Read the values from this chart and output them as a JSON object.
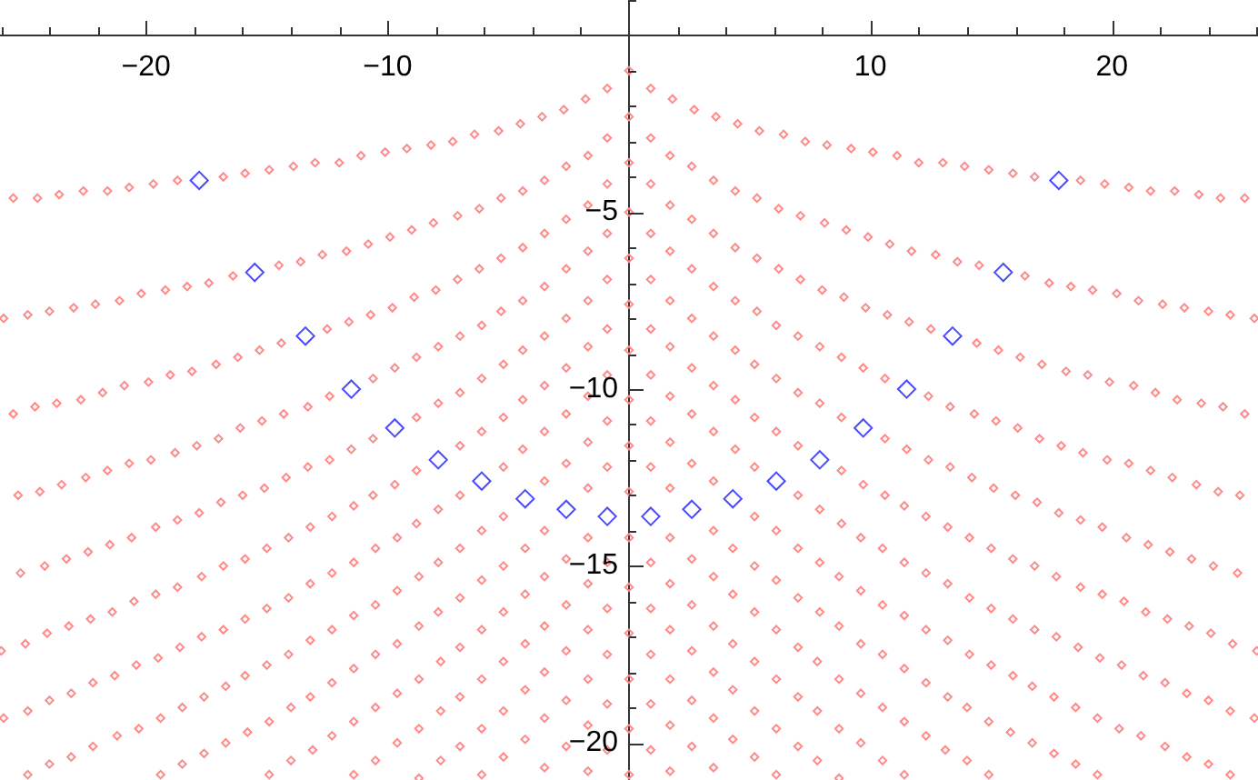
{
  "chart_data": {
    "type": "scatter",
    "xlim": [
      -26.05,
      26.05
    ],
    "ylim": [
      -21.05,
      1
    ],
    "marker": "diamond",
    "xticks": [
      {
        "value": -26,
        "label": null
      },
      {
        "value": -24,
        "label": null
      },
      {
        "value": -22,
        "label": null
      },
      {
        "value": -20,
        "label": "−20"
      },
      {
        "value": -18,
        "label": null
      },
      {
        "value": -16,
        "label": null
      },
      {
        "value": -14,
        "label": null
      },
      {
        "value": -12,
        "label": null
      },
      {
        "value": -10,
        "label": "−10"
      },
      {
        "value": -8,
        "label": null
      },
      {
        "value": -6,
        "label": null
      },
      {
        "value": -4,
        "label": null
      },
      {
        "value": -2,
        "label": null
      },
      {
        "value": 2,
        "label": null
      },
      {
        "value": 4,
        "label": null
      },
      {
        "value": 6,
        "label": null
      },
      {
        "value": 8,
        "label": null
      },
      {
        "value": 10,
        "label": "10"
      },
      {
        "value": 12,
        "label": null
      },
      {
        "value": 14,
        "label": null
      },
      {
        "value": 16,
        "label": null
      },
      {
        "value": 18,
        "label": null
      },
      {
        "value": 20,
        "label": "20"
      },
      {
        "value": 22,
        "label": null
      },
      {
        "value": 24,
        "label": null
      },
      {
        "value": 26,
        "label": null
      }
    ],
    "yticks": [
      {
        "value": 1,
        "label": null
      },
      {
        "value": -1,
        "label": null
      },
      {
        "value": -2,
        "label": null
      },
      {
        "value": -3,
        "label": null
      },
      {
        "value": -4,
        "label": null
      },
      {
        "value": -5,
        "label": "−5"
      },
      {
        "value": -6,
        "label": null
      },
      {
        "value": -7,
        "label": null
      },
      {
        "value": -8,
        "label": null
      },
      {
        "value": -9,
        "label": null
      },
      {
        "value": -10,
        "label": "−10"
      },
      {
        "value": -11,
        "label": null
      },
      {
        "value": -12,
        "label": null
      },
      {
        "value": -13,
        "label": null
      },
      {
        "value": -14,
        "label": null
      },
      {
        "value": -15,
        "label": "−15"
      },
      {
        "value": -16,
        "label": null
      },
      {
        "value": -17,
        "label": null
      },
      {
        "value": -18,
        "label": null
      },
      {
        "value": -19,
        "label": null
      },
      {
        "value": -20,
        "label": "−20"
      }
    ],
    "series": [
      {
        "color": "#ff8a8a",
        "x": [
          0,
          0.9,
          -0.9,
          1.8,
          0,
          -1.8,
          2.7,
          0.9,
          -2.7,
          -0.9,
          3.6,
          1.7,
          0,
          -3.6,
          -1.7,
          4.5,
          2.6,
          0.9,
          -4.5,
          -2.6,
          -0.9,
          5.4,
          3.5,
          1.7,
          0,
          -5.4,
          -3.5,
          -1.7,
          6.4,
          4.4,
          2.6,
          0.9,
          -6.4,
          -4.4,
          -2.6,
          -0.9,
          7.3,
          5.3,
          3.5,
          1.7,
          0,
          -7.3,
          -5.3,
          -3.5,
          -1.7,
          8.2,
          6.2,
          4.4,
          2.6,
          0.9,
          -8.2,
          -6.2,
          -4.4,
          -2.6,
          -0.9,
          9.2,
          7.1,
          5.3,
          3.5,
          1.7,
          0,
          -9.2,
          -7.1,
          -5.3,
          -3.5,
          -1.7,
          10.1,
          8.1,
          6.2,
          4.4,
          2.6,
          0.9,
          -10.1,
          -8.1,
          -6.2,
          -4.4,
          -2.6,
          -0.9,
          11.1,
          9.0,
          7.1,
          5.3,
          3.5,
          1.7,
          0,
          -11.1,
          -9.0,
          -7.1,
          -5.3,
          -3.5,
          -1.7,
          12.0,
          9.9,
          8.0,
          6.1,
          4.4,
          2.6,
          0.9,
          -12.0,
          -9.9,
          -8.0,
          -6.1,
          -4.4,
          -2.6,
          -0.9,
          13.0,
          10.8,
          8.9,
          7.0,
          5.2,
          3.5,
          1.7,
          0,
          -13.0,
          -10.8,
          -8.9,
          -7.0,
          -5.2,
          -3.5,
          -1.7,
          13.9,
          11.7,
          9.8,
          7.9,
          6.1,
          4.4,
          2.6,
          0.9,
          -13.9,
          -11.7,
          -9.8,
          -7.9,
          -6.1,
          -4.4,
          -2.6,
          -0.9,
          14.9,
          12.7,
          10.7,
          8.8,
          7.0,
          5.2,
          3.5,
          1.7,
          0,
          -14.9,
          -12.7,
          -10.7,
          -8.8,
          -7.0,
          -5.2,
          -3.5,
          -1.7,
          15.9,
          13.6,
          11.6,
          9.7,
          7.9,
          6.1,
          4.4,
          2.6,
          0.9,
          -15.9,
          -13.6,
          -11.6,
          -9.7,
          -7.9,
          -6.1,
          -4.4,
          -2.6,
          -0.9,
          16.8,
          14.5,
          12.5,
          10.6,
          8.8,
          7.0,
          5.2,
          3.5,
          1.7,
          0,
          -16.8,
          -14.5,
          -12.5,
          -10.6,
          -8.8,
          -7.0,
          -5.2,
          -3.5,
          -1.7,
          18.7,
          16.4,
          14.4,
          12.4,
          10.6,
          8.8,
          7.0,
          5.2,
          3.5,
          1.7,
          0,
          -18.7,
          -16.4,
          -14.4,
          -12.4,
          -10.6,
          -8.8,
          -7.0,
          -5.2,
          -3.5,
          -1.7,
          19.7,
          17.4,
          15.3,
          13.3,
          11.5,
          9.7,
          7.9,
          6.1,
          4.3,
          2.6,
          0.9,
          -19.7,
          -17.4,
          -15.3,
          -13.3,
          -11.5,
          -9.7,
          -7.9,
          -6.1,
          -4.3,
          -2.6,
          -0.9,
          20.7,
          18.3,
          16.2,
          14.3,
          12.4,
          10.6,
          8.8,
          7.0,
          5.2,
          3.5,
          1.7,
          0,
          -20.7,
          -18.3,
          -16.2,
          -14.3,
          -12.4,
          -10.6,
          -8.8,
          -7.0,
          -5.2,
          -3.5,
          -1.7,
          21.6,
          19.2,
          17.1,
          15.2,
          13.3,
          11.4,
          9.6,
          7.9,
          6.1,
          4.3,
          2.6,
          0.9,
          -21.6,
          -19.2,
          -17.1,
          -15.2,
          -13.3,
          -11.4,
          -9.6,
          -7.9,
          -6.1,
          -4.3,
          -2.6,
          -0.9,
          22.6,
          20.2,
          18.1,
          16.1,
          14.2,
          12.3,
          10.5,
          8.7,
          7.0,
          5.2,
          3.5,
          1.7,
          0,
          -22.6,
          -20.2,
          -18.1,
          -16.1,
          -14.2,
          -12.3,
          -10.5,
          -8.7,
          -7.0,
          -5.2,
          -3.5,
          -1.7,
          23.6,
          21.1,
          19.0,
          17.0,
          15.1,
          13.2,
          11.4,
          9.6,
          7.9,
          6.1,
          4.3,
          2.6,
          0.9,
          -23.6,
          -21.1,
          -19.0,
          -17.0,
          -15.1,
          -13.2,
          -11.4,
          -9.6,
          -7.9,
          -6.1,
          -4.3,
          -2.6,
          -0.9,
          24.5,
          22.1,
          19.9,
          17.9,
          16.0,
          14.1,
          12.3,
          10.5,
          8.7,
          7.0,
          5.2,
          3.5,
          1.7,
          0,
          -24.5,
          -22.1,
          -19.9,
          -17.9,
          -16.0,
          -14.1,
          -12.3,
          -10.5,
          -8.7,
          -7.0,
          -5.2,
          -3.5,
          -1.7,
          25.5,
          23.0,
          20.9,
          18.8,
          16.9,
          15.0,
          13.2,
          11.4,
          9.6,
          7.8,
          6.1,
          4.3,
          2.6,
          0.9,
          -25.5,
          -23.0,
          -20.9,
          -18.8,
          -16.9,
          -15.0,
          -13.2,
          -11.4,
          -9.6,
          -7.8,
          -6.1,
          -4.3,
          -2.6,
          -0.9,
          24.0,
          21.8,
          19.8,
          17.8,
          15.9,
          14.1,
          12.3,
          10.5,
          8.7,
          7.0,
          5.2,
          3.5,
          1.7,
          0,
          -24.0,
          -21.8,
          -19.8,
          -17.8,
          -15.9,
          -14.1,
          -12.3,
          -10.5,
          -8.7,
          -7.0,
          -5.2,
          -3.5,
          -1.7,
          24.9,
          22.7,
          20.7,
          18.7,
          16.8,
          15.0,
          13.2,
          11.4,
          9.6,
          7.8,
          6.1,
          4.3,
          2.6,
          0.9,
          -24.9,
          -22.7,
          -20.7,
          -18.7,
          -16.8,
          -15.0,
          -13.2,
          -11.4,
          -9.6,
          -7.8,
          -6.1,
          -4.3,
          -2.6,
          -0.9,
          25.9,
          23.7,
          21.6,
          19.6,
          17.7,
          15.9,
          14.1,
          12.3,
          10.5,
          8.7,
          7.0,
          5.2,
          3.5,
          1.7,
          0,
          -25.9,
          -23.7,
          -21.6,
          -19.6,
          -17.7,
          -15.9,
          -14.1,
          -12.3,
          -10.5,
          -8.7,
          -7.0,
          -5.2,
          -3.5,
          -1.7,
          24.6,
          22.5,
          20.6,
          18.7,
          16.8,
          15.0,
          13.2,
          11.4,
          9.6,
          7.8,
          6.1,
          -24.6,
          -22.5,
          -20.6,
          -18.7,
          -16.8,
          -15.0,
          -13.2,
          -11.4,
          -9.6,
          -7.8,
          -6.1,
          25.5,
          23.5,
          21.5,
          19.6,
          17.7,
          15.9,
          14.0,
          12.3,
          10.5,
          8.7,
          -25.5,
          -23.5,
          -21.5,
          -19.6,
          -17.7,
          -15.9,
          -14.0,
          -12.3,
          -10.5,
          -8.7,
          24.4,
          22.4,
          20.5,
          18.6,
          16.7,
          14.9,
          13.1,
          11.4,
          -24.4,
          -22.4,
          -20.5,
          -18.6,
          -16.7,
          -14.9,
          -13.1,
          -11.4,
          25.3,
          23.3,
          21.4,
          19.5,
          17.6,
          15.8,
          14.0,
          -25.3,
          -23.3,
          -21.4,
          -19.5,
          -17.6,
          -15.8,
          -14.0,
          24.2,
          22.3,
          20.4,
          18.5,
          16.7,
          14.9,
          -24.2,
          -22.3,
          -20.4,
          -18.5,
          -16.7,
          -14.9,
          25.2,
          23.2,
          21.3,
          19.4,
          17.6,
          -25.2,
          -23.2,
          -21.3,
          -19.4,
          -17.6,
          24.1,
          22.2,
          20.3,
          18.5,
          -24.1,
          -22.2,
          -20.3,
          -18.5,
          25.0,
          23.1,
          21.2,
          19.4,
          -25.0,
          -23.1,
          -21.2,
          -19.4,
          26.0,
          24.0,
          22.2,
          -26.0,
          -24.0,
          -22.2,
          24.9,
          23.1,
          -24.9,
          -23.1,
          25.9,
          24.0,
          -25.9,
          -24.0,
          24.9,
          -24.9
        ],
        "values": [
          -1.0,
          -1.5,
          -1.5,
          -1.8,
          -2.3,
          -1.8,
          -2.1,
          -2.9,
          -2.1,
          -2.9,
          -2.3,
          -3.4,
          -3.6,
          -2.3,
          -3.4,
          -2.5,
          -3.7,
          -4.2,
          -2.5,
          -3.7,
          -4.2,
          -2.7,
          -4.1,
          -4.8,
          -5.0,
          -2.7,
          -4.1,
          -4.8,
          -2.8,
          -4.4,
          -5.2,
          -5.6,
          -2.8,
          -4.4,
          -5.2,
          -5.6,
          -3.0,
          -4.6,
          -5.6,
          -6.1,
          -6.3,
          -3.0,
          -4.6,
          -5.6,
          -6.1,
          -3.1,
          -4.9,
          -6.0,
          -6.6,
          -6.9,
          -3.1,
          -4.9,
          -6.0,
          -6.6,
          -6.9,
          -3.2,
          -5.1,
          -6.3,
          -7.1,
          -7.5,
          -7.6,
          -3.2,
          -5.1,
          -6.3,
          -7.1,
          -7.5,
          -3.3,
          -5.3,
          -6.6,
          -7.5,
          -8.0,
          -8.3,
          -3.3,
          -5.3,
          -6.6,
          -7.5,
          -8.0,
          -8.3,
          -3.4,
          -5.5,
          -6.9,
          -7.8,
          -8.5,
          -8.8,
          -8.9,
          -3.4,
          -5.5,
          -6.9,
          -7.8,
          -8.5,
          -8.8,
          -3.6,
          -5.7,
          -7.2,
          -8.2,
          -8.9,
          -9.4,
          -9.6,
          -3.6,
          -5.7,
          -7.2,
          -8.2,
          -8.9,
          -9.4,
          -9.6,
          -3.6,
          -5.9,
          -7.4,
          -8.5,
          -9.3,
          -9.9,
          -10.2,
          -10.3,
          -3.6,
          -5.9,
          -7.4,
          -8.5,
          -9.3,
          -9.9,
          -10.2,
          -3.7,
          -6.1,
          -7.7,
          -8.8,
          -9.7,
          -10.3,
          -10.7,
          -10.9,
          -3.7,
          -6.1,
          -7.7,
          -8.8,
          -9.7,
          -10.3,
          -10.7,
          -10.9,
          -3.8,
          -6.2,
          -7.9,
          -9.1,
          -10.1,
          -10.8,
          -11.2,
          -11.5,
          -11.6,
          -3.8,
          -6.2,
          -7.9,
          -9.1,
          -10.1,
          -10.8,
          -11.2,
          -11.5,
          -3.9,
          -6.4,
          -8.1,
          -9.4,
          -10.4,
          -11.2,
          -11.7,
          -12.1,
          -12.2,
          -3.9,
          -6.4,
          -8.1,
          -9.4,
          -10.4,
          -11.2,
          -11.7,
          -12.1,
          -12.2,
          -4.0,
          -6.5,
          -8.3,
          -9.7,
          -10.8,
          -11.6,
          -12.2,
          -12.6,
          -12.8,
          -12.9,
          -4.0,
          -6.5,
          -8.3,
          -9.7,
          -10.8,
          -11.6,
          -12.2,
          -12.6,
          -12.8,
          -4.1,
          -6.8,
          -8.7,
          -10.2,
          -11.4,
          -12.3,
          -13.0,
          -13.6,
          -14.0,
          -14.2,
          -14.2,
          -4.1,
          -6.8,
          -8.7,
          -10.2,
          -11.4,
          -12.3,
          -13.0,
          -13.6,
          -14.0,
          -14.2,
          -4.2,
          -7.0,
          -8.9,
          -10.5,
          -11.7,
          -12.7,
          -13.4,
          -14.0,
          -14.5,
          -14.8,
          -14.9,
          -4.2,
          -7.0,
          -8.9,
          -10.5,
          -11.7,
          -12.7,
          -13.4,
          -14.0,
          -14.5,
          -14.8,
          -14.9,
          -4.3,
          -7.1,
          -9.1,
          -10.7,
          -12.0,
          -13.0,
          -13.8,
          -14.5,
          -15.0,
          -15.3,
          -15.5,
          -15.6,
          -4.3,
          -7.1,
          -9.1,
          -10.7,
          -12.0,
          -13.0,
          -13.8,
          -14.5,
          -15.0,
          -15.3,
          -15.5,
          -4.4,
          -7.2,
          -9.3,
          -10.9,
          -12.2,
          -13.3,
          -14.2,
          -14.9,
          -15.4,
          -15.8,
          -16.1,
          -16.2,
          -4.4,
          -7.2,
          -9.3,
          -10.9,
          -12.2,
          -13.3,
          -14.2,
          -14.9,
          -15.4,
          -15.8,
          -16.1,
          -16.2,
          -4.4,
          -7.3,
          -9.5,
          -11.1,
          -12.5,
          -13.6,
          -14.5,
          -15.3,
          -15.9,
          -16.3,
          -16.7,
          -16.8,
          -16.9,
          -4.4,
          -7.3,
          -9.5,
          -11.1,
          -12.5,
          -13.6,
          -14.5,
          -15.3,
          -15.9,
          -16.3,
          -16.7,
          -16.8,
          -4.5,
          -7.5,
          -9.6,
          -11.4,
          -12.8,
          -13.9,
          -14.9,
          -15.7,
          -16.3,
          -16.8,
          -17.2,
          -17.4,
          -17.5,
          -4.5,
          -7.5,
          -9.6,
          -11.4,
          -12.8,
          -13.9,
          -14.9,
          -15.7,
          -16.3,
          -16.8,
          -17.2,
          -17.4,
          -17.5,
          -4.6,
          -7.6,
          -9.8,
          -11.6,
          -13.0,
          -14.2,
          -15.2,
          -16.1,
          -16.7,
          -17.3,
          -17.7,
          -18.0,
          -18.2,
          -18.2,
          -4.6,
          -7.6,
          -9.8,
          -11.6,
          -13.0,
          -14.2,
          -15.2,
          -16.1,
          -16.7,
          -17.3,
          -17.7,
          -18.0,
          -18.2,
          -4.6,
          -7.7,
          -9.9,
          -11.8,
          -13.2,
          -14.5,
          -15.5,
          -16.4,
          -17.2,
          -17.7,
          -18.2,
          -18.5,
          -18.8,
          -18.9,
          -4.6,
          -7.7,
          -9.9,
          -11.8,
          -13.2,
          -14.5,
          -15.5,
          -16.4,
          -17.2,
          -17.7,
          -18.2,
          -18.5,
          -18.8,
          -18.9,
          -7.8,
          -10.1,
          -12.0,
          -13.5,
          -14.8,
          -15.9,
          -16.8,
          -17.5,
          -18.2,
          -18.7,
          -19.1,
          -19.3,
          -19.5,
          -19.6,
          -7.8,
          -10.1,
          -12.0,
          -13.5,
          -14.8,
          -15.9,
          -16.8,
          -17.5,
          -18.2,
          -18.7,
          -19.1,
          -19.3,
          -19.5,
          -7.9,
          -10.3,
          -12.1,
          -13.7,
          -15.0,
          -16.2,
          -17.1,
          -17.9,
          -18.6,
          -19.1,
          -19.6,
          -19.9,
          -20.1,
          -20.2,
          -7.9,
          -10.3,
          -12.1,
          -13.7,
          -15.0,
          -16.2,
          -17.1,
          -17.9,
          -18.6,
          -19.1,
          -19.6,
          -19.9,
          -20.1,
          -20.2,
          -8.0,
          -10.4,
          -12.3,
          -13.9,
          -15.3,
          -16.5,
          -17.5,
          -18.3,
          -19.0,
          -19.6,
          -20.1,
          -20.4,
          -20.7,
          -20.8,
          -20.9,
          -8.0,
          -10.4,
          -12.3,
          -13.9,
          -15.3,
          -16.5,
          -17.5,
          -18.3,
          -19.0,
          -19.6,
          -20.1,
          -20.4,
          -20.7,
          -20.8,
          -10.5,
          -12.5,
          -14.2,
          -15.6,
          -16.8,
          -17.8,
          -18.7,
          -19.4,
          -20.0,
          -20.5,
          -20.9,
          -10.5,
          -12.5,
          -14.2,
          -15.6,
          -16.8,
          -17.8,
          -18.7,
          -19.4,
          -20.0,
          -20.5,
          -20.9,
          -10.7,
          -12.7,
          -14.4,
          -15.8,
          -17.0,
          -18.1,
          -19.0,
          -19.8,
          -20.5,
          -21.0,
          -10.7,
          -12.7,
          -14.4,
          -15.8,
          -17.0,
          -18.1,
          -19.0,
          -19.8,
          -20.5,
          -21.0,
          -12.9,
          -14.6,
          -16.0,
          -17.3,
          -18.4,
          -19.4,
          -20.2,
          -20.9,
          -12.9,
          -14.6,
          -16.0,
          -17.3,
          -18.4,
          -19.4,
          -20.2,
          -20.9,
          -13.0,
          -14.8,
          -16.3,
          -17.6,
          -18.7,
          -19.7,
          -20.5,
          -13.0,
          -14.8,
          -16.3,
          -17.6,
          -18.7,
          -19.7,
          -20.5,
          -15.0,
          -16.5,
          -17.8,
          -19.0,
          -20.0,
          -20.9,
          -15.0,
          -16.5,
          -17.8,
          -19.0,
          -20.0,
          -20.9,
          -15.2,
          -16.7,
          -18.1,
          -19.3,
          -20.3,
          -15.2,
          -16.7,
          -18.1,
          -19.3,
          -20.3,
          -16.9,
          -18.3,
          -19.6,
          -20.6,
          -16.9,
          -18.3,
          -19.6,
          -20.6,
          -17.2,
          -18.6,
          -19.8,
          -20.9,
          -17.2,
          -18.6,
          -19.8,
          -20.9,
          -17.4,
          -18.8,
          -20.1,
          -17.4,
          -18.8,
          -20.1,
          -19.1,
          -20.4,
          -19.1,
          -20.4,
          -19.3,
          -20.6,
          -19.3,
          -20.6,
          -20.9,
          -20.9
        ]
      },
      {
        "color": "#4a4aff",
        "x": [
          17.8,
          15.5,
          13.4,
          11.5,
          9.7,
          7.9,
          6.1,
          4.3,
          2.6,
          0.9,
          -17.8,
          -15.5,
          -13.4,
          -11.5,
          -9.7,
          -7.9,
          -6.1,
          -4.3,
          -2.6,
          -0.9
        ],
        "values": [
          -4.1,
          -6.7,
          -8.5,
          -10.0,
          -11.1,
          -12.0,
          -12.6,
          -13.1,
          -13.4,
          -13.6,
          -4.1,
          -6.7,
          -8.5,
          -10.0,
          -11.1,
          -12.0,
          -12.6,
          -13.1,
          -13.4,
          -13.6
        ]
      }
    ]
  }
}
